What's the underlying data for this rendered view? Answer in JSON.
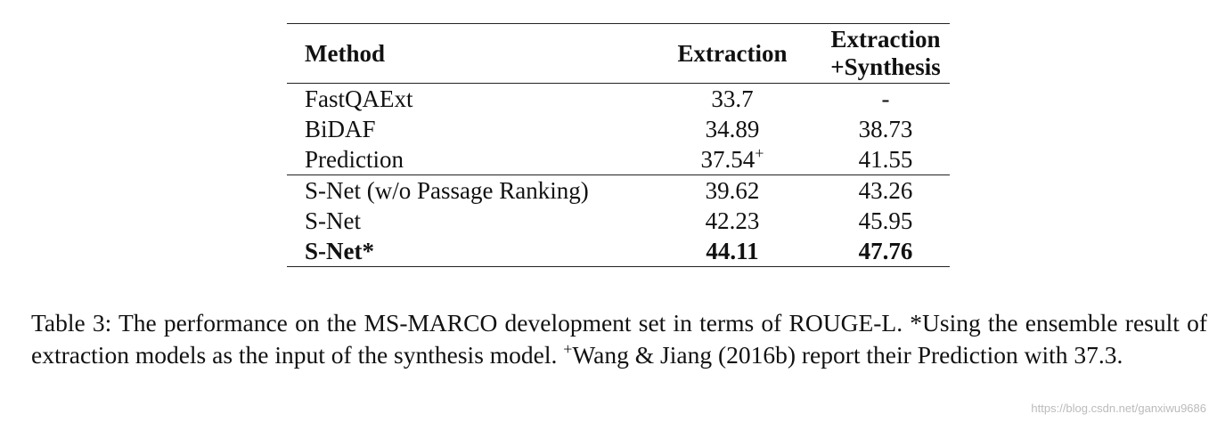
{
  "table": {
    "header": {
      "method": "Method",
      "extraction": "Extraction",
      "combined": [
        "Extraction",
        "+Synthesis"
      ]
    },
    "groups": [
      [
        [
          "FastQAExt",
          "33.7",
          "-"
        ],
        [
          "BiDAF",
          "34.89",
          "38.73"
        ],
        [
          "Prediction",
          {
            "text": "37.54",
            "sup": "+"
          },
          "41.55"
        ]
      ],
      [
        [
          "S-Net (w/o Passage Ranking)",
          "39.62",
          "43.26"
        ],
        [
          "S-Net",
          "42.23",
          "45.95"
        ],
        [
          "S-Net*",
          "44.11",
          "47.76"
        ]
      ]
    ]
  },
  "caption": {
    "before": "Table 3: The performance on the MS-MARCO development set in terms of ROUGE-L. *Using the ensemble result of extraction models as the input of the synthesis model.",
    "sup": "+",
    "after": "Wang & Jiang (2016b) report their Prediction with 37.3."
  },
  "watermark": "https://blog.csdn.net/ganxiwu9686"
}
